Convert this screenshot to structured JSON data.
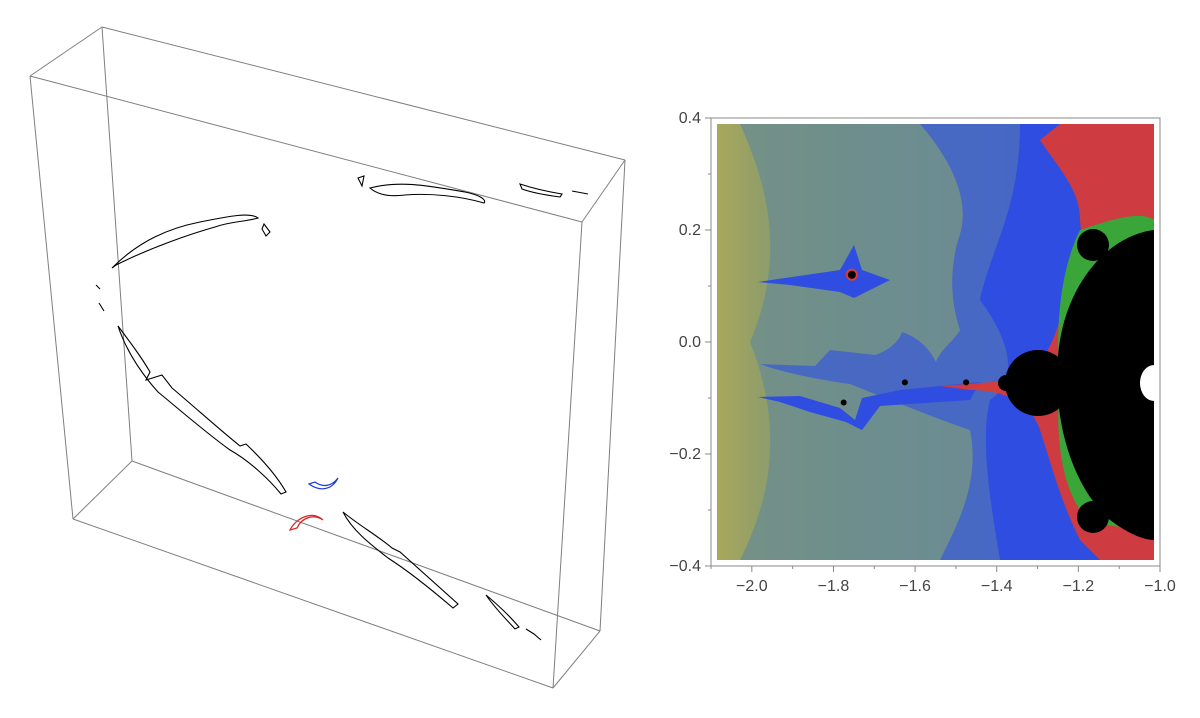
{
  "chart_data": [
    {
      "type": "other",
      "title": "",
      "note_kind": "3d-wireframe",
      "box_color": "#7f7f7f",
      "curve_colors": [
        "#000000",
        "#1f3bdc",
        "#d62728"
      ],
      "axes_labels": []
    },
    {
      "type": "heatmap",
      "title": "",
      "xlabel": "",
      "ylabel": "",
      "xlim": [
        -2.1,
        -1.0
      ],
      "ylim": [
        -0.4,
        0.4
      ],
      "x_ticks": [
        "-2.0",
        "-1.8",
        "-1.6",
        "-1.4",
        "-1.2",
        "-1.0"
      ],
      "x_tick_values": [
        -2.0,
        -1.8,
        -1.6,
        -1.4,
        -1.2,
        -1.0
      ],
      "y_ticks": [
        "0.4",
        "0.2",
        "0.0",
        "-0.2",
        "-0.4"
      ],
      "y_tick_values": [
        0.4,
        0.2,
        0.0,
        -0.2,
        -0.4
      ],
      "colors": {
        "set_interior": "#000000",
        "escape_fast": "#a8a85a",
        "escape_mid": "#6a8f8a",
        "escape_slow": "#2f4de0",
        "boundary_red": "#e03a2f",
        "boundary_green": "#3aa63a",
        "hole": "#ffffff"
      },
      "dark_blobs": [
        {
          "x": -1.755,
          "y": 0.12
        },
        {
          "x": -1.775,
          "y": -0.108
        },
        {
          "x": -1.625,
          "y": -0.072
        },
        {
          "x": -1.475,
          "y": -0.072
        },
        {
          "x": -1.31,
          "y": -0.075
        }
      ]
    }
  ]
}
